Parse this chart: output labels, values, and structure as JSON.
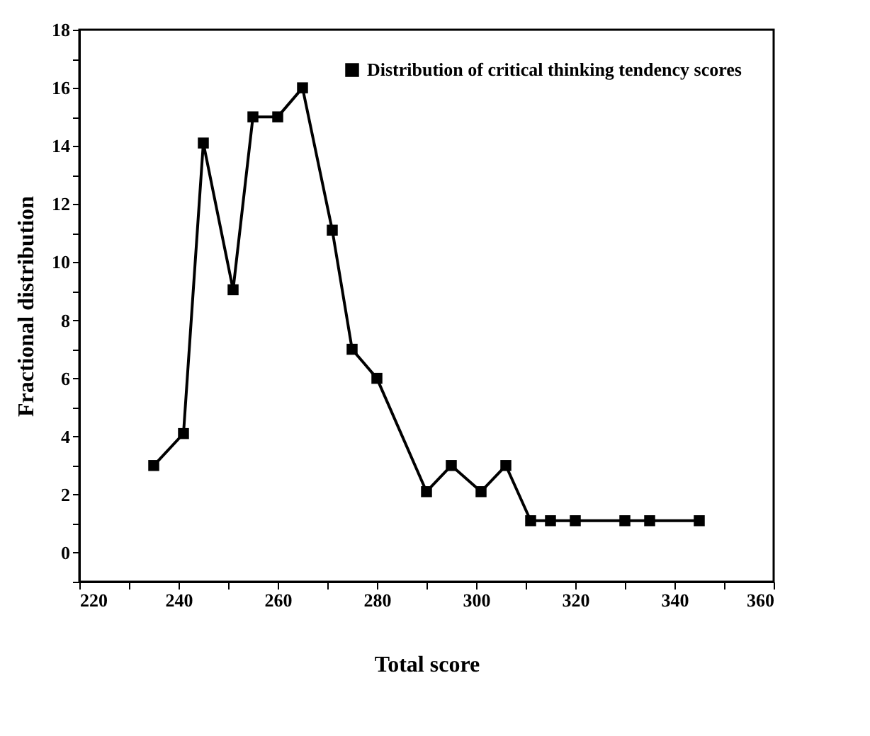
{
  "chart_data": {
    "type": "line",
    "xlabel": "Total score",
    "ylabel": "Fractional distribution",
    "x": [
      235,
      241,
      245,
      251,
      255,
      260,
      265,
      271,
      275,
      280,
      290,
      295,
      301,
      306,
      311,
      315,
      320,
      330,
      335,
      345
    ],
    "series": [
      {
        "name": "Distribution of critical thinking tendency scores",
        "color": "#000000",
        "values": [
          3,
          4.1,
          14.1,
          9.05,
          15,
          15,
          16,
          11.1,
          7,
          6,
          2.1,
          3,
          2.1,
          3,
          1.1,
          1.1,
          1.1,
          1.1,
          1.1,
          1.1
        ]
      }
    ],
    "xlim": [
      220,
      360
    ],
    "xticks": [
      220,
      {
        "value": 230,
        "label": null
      },
      240,
      {
        "value": 250,
        "label": null
      },
      260,
      {
        "value": 270,
        "label": null
      },
      280,
      {
        "value": 290,
        "label": null
      },
      300,
      {
        "value": 310,
        "label": null
      },
      320,
      {
        "value": 330,
        "label": null
      },
      340,
      {
        "value": 350,
        "label": null
      },
      360
    ],
    "ylim": [
      -1,
      18
    ],
    "yticks": [
      {
        "value": -1,
        "label": null
      },
      0,
      {
        "value": 1,
        "label": null
      },
      2,
      {
        "value": 3,
        "label": null
      },
      4,
      {
        "value": 5,
        "label": null
      },
      6,
      {
        "value": 7,
        "label": null
      },
      8,
      {
        "value": 9,
        "label": null
      },
      10,
      {
        "value": 11,
        "label": null
      },
      12,
      {
        "value": 13,
        "label": null
      },
      14,
      {
        "value": 15,
        "label": null
      },
      16,
      {
        "value": 17,
        "label": null
      },
      18
    ],
    "legend": "top right",
    "marker": "square",
    "line_style": "solid"
  }
}
